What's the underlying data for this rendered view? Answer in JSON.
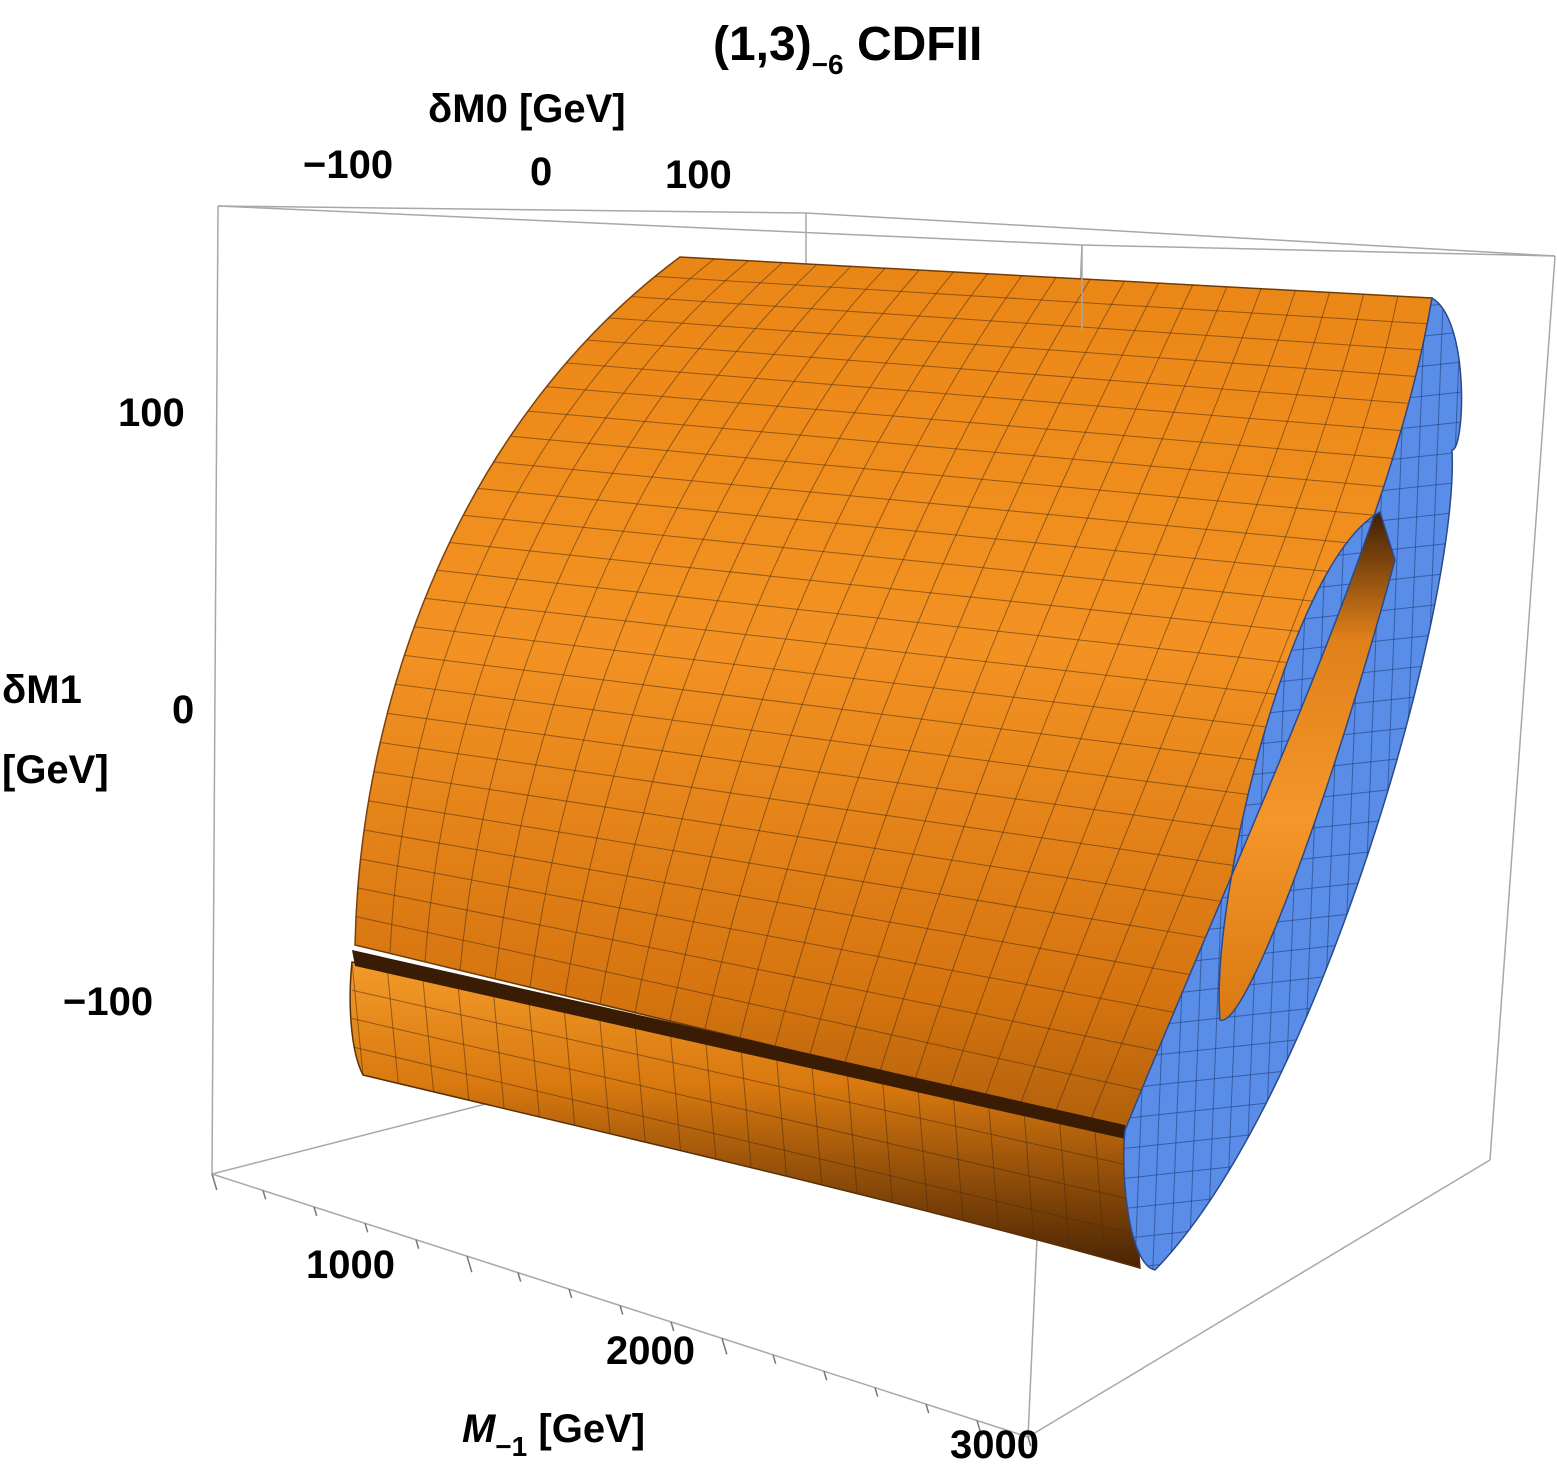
{
  "chart_data": {
    "type": "surface3d",
    "title": {
      "main": "(1,3)",
      "subscript": "−6",
      "suffix": " CDFII"
    },
    "x_axis": {
      "label": {
        "main": "M",
        "subscript": "−1",
        "suffix": " [GeV]"
      },
      "ticks": [
        "1000",
        "2000",
        "3000"
      ],
      "tick_values": [
        1000,
        2000,
        3000
      ]
    },
    "y_axis": {
      "label": "δM0 [GeV]",
      "ticks": [
        "−100",
        "0",
        "100"
      ],
      "tick_values": [
        -100,
        0,
        100
      ]
    },
    "z_axis": {
      "label_line1": "δM1",
      "label_line2": "[GeV]",
      "ticks": [
        "100",
        "0",
        "−100"
      ],
      "tick_values": [
        100,
        0,
        -100
      ]
    },
    "surface": {
      "description": "Annular band (shell) in the δM0–δM1 plane extruded along M−1; open at the bottom-front",
      "outer_radius": 150,
      "inner_radius": 85,
      "colors": {
        "surface": "#F0901E",
        "surface_dark": "#6A3408",
        "cap": "#5A8DE8",
        "mesh": "#3a2a1a",
        "box": "#999999"
      }
    }
  }
}
